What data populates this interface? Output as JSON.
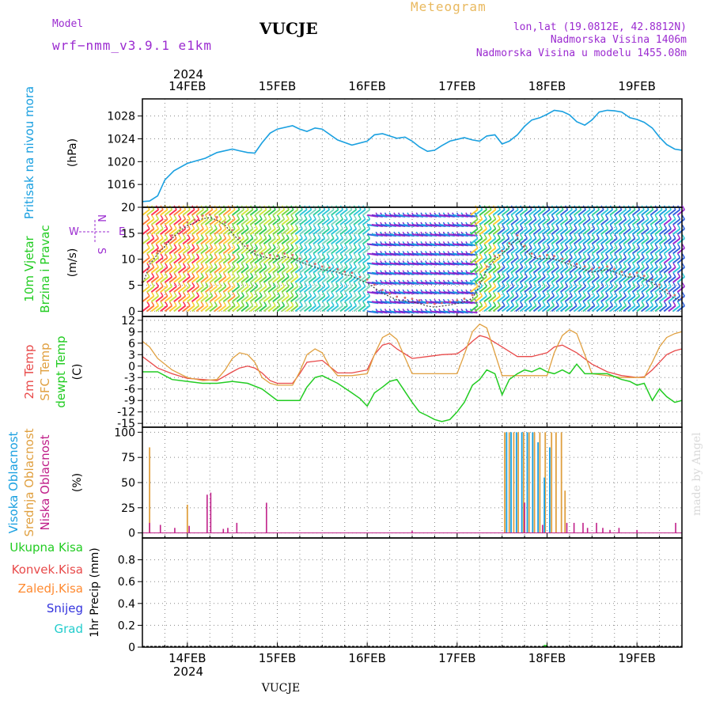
{
  "header": {
    "model_label": "Model",
    "model_name": "wrf−nmm_v3.9.1  e1km",
    "title": "VUCJE",
    "meteogram_label": "Meteogram",
    "coords": "lon,lat (19.0812E, 42.8812N)",
    "elevation": "Nadmorska Visina 1406m",
    "model_elevation": "Nadmorska Visina u modelu 1455.08m",
    "year_top": "2024",
    "year_bottom": "2024",
    "footer_title": "VUCJE",
    "credit": "made by Angel"
  },
  "colors": {
    "pressure": "#1aa0e0",
    "speed_line": "#444444",
    "gust_dots": "#d86b6b",
    "temp2m": "#e84a4a",
    "sfc_temp": "#e0a040",
    "dewpt": "#22cc22",
    "cloud_high": "#1aa0e0",
    "cloud_mid": "#e0a040",
    "cloud_low": "#c0208a",
    "precip_total": "#22cc22",
    "precip_conv": "#e84a4a",
    "precip_frozen": "#ff8a30",
    "precip_snow": "#3333dd",
    "precip_hail": "#22cccc",
    "wind_legend": "#9b2bd0"
  },
  "days": [
    "14FEB",
    "15FEB",
    "16FEB",
    "17FEB",
    "18FEB",
    "19FEB"
  ],
  "panels": {
    "pressure": {
      "side": [
        "Pritisak na nivou mora"
      ],
      "unit": "(hPa)"
    },
    "wind": {
      "side": [
        "10m Vjetar",
        "Brzina i Pravac"
      ],
      "unit": "(m/s)",
      "legend": {
        "n": "N",
        "s": "S",
        "e": "E",
        "w": "W"
      }
    },
    "temp": {
      "side": [
        "2m Temp",
        "SFC Temp",
        "dewpt Temp"
      ],
      "unit": "(C)"
    },
    "cloud": {
      "side": [
        "Visoka Oblacnost",
        "Srednja Oblacnost",
        "Niska Oblacnost"
      ],
      "unit": "(%)"
    },
    "precip": {
      "side": [
        "Ukupna Kisa",
        "Konvek.Kisa",
        "Zaledj.Kisa",
        "Snijeg",
        "Grad"
      ],
      "unit": "1hr Precip (mm)"
    }
  },
  "chart_data": [
    {
      "type": "line",
      "title": "",
      "ylabel": "(hPa)",
      "x_unit": "days from 13FEB 12UTC",
      "xlim": [
        0,
        6
      ],
      "ylim": [
        1012,
        1031
      ],
      "yticks": [
        1016,
        1020,
        1024,
        1028
      ],
      "series": [
        {
          "name": "Pritisak na nivou mora",
          "x": [
            0,
            0.08,
            0.17,
            0.25,
            0.35,
            0.5,
            0.7,
            0.83,
            1.0,
            1.08,
            1.17,
            1.25,
            1.33,
            1.42,
            1.5,
            1.67,
            1.75,
            1.83,
            1.92,
            2.0,
            2.17,
            2.33,
            2.5,
            2.58,
            2.67,
            2.75,
            2.83,
            2.92,
            3.0,
            3.08,
            3.17,
            3.25,
            3.33,
            3.42,
            3.5,
            3.58,
            3.67,
            3.75,
            3.83,
            3.92,
            4.0,
            4.08,
            4.17,
            4.25,
            4.33,
            4.42,
            4.5,
            4.58,
            4.67,
            4.75,
            4.83,
            4.92,
            5.0,
            5.08,
            5.17,
            5.25,
            5.33,
            5.42,
            5.5,
            5.58,
            5.67,
            5.75,
            5.83,
            5.92,
            6.0
          ],
          "values": [
            1013.0,
            1013.1,
            1014.0,
            1016.8,
            1018.4,
            1019.7,
            1020.6,
            1021.6,
            1022.2,
            1021.9,
            1021.6,
            1021.5,
            1023.3,
            1025.0,
            1025.7,
            1026.3,
            1025.7,
            1025.3,
            1025.9,
            1025.7,
            1023.8,
            1022.9,
            1023.6,
            1024.7,
            1024.9,
            1024.5,
            1024.1,
            1024.3,
            1023.6,
            1022.6,
            1021.8,
            1022.0,
            1022.8,
            1023.6,
            1023.9,
            1024.2,
            1023.8,
            1023.6,
            1024.5,
            1024.7,
            1023.1,
            1023.6,
            1024.7,
            1026.2,
            1027.3,
            1027.7,
            1028.3,
            1029.0,
            1028.8,
            1028.2,
            1027.0,
            1026.4,
            1027.3,
            1028.7,
            1029.0,
            1028.9,
            1028.7,
            1027.7,
            1027.4,
            1026.9,
            1025.9,
            1024.3,
            1023.0,
            1022.2,
            1022.0
          ]
        }
      ]
    },
    {
      "type": "line",
      "title": "",
      "ylabel": "(m/s)",
      "xlim": [
        0,
        6
      ],
      "ylim": [
        -1,
        20
      ],
      "yticks": [
        0,
        5,
        10,
        15,
        20
      ],
      "series": [
        {
          "name": "10m Vjetar",
          "x": [
            0,
            0.08,
            0.17,
            0.25,
            0.33,
            0.42,
            0.5,
            0.58,
            0.67,
            0.75,
            0.83,
            0.92,
            1.0,
            1.08,
            1.17,
            1.25,
            1.33,
            1.42,
            1.5,
            1.58,
            1.67,
            1.75,
            1.83,
            1.92,
            2.0,
            2.08,
            2.17,
            2.25,
            2.33,
            2.42,
            2.5,
            2.58,
            2.67,
            2.75,
            2.83,
            2.92,
            3.0,
            3.08,
            3.17,
            3.25,
            3.33,
            3.42,
            3.5,
            3.58,
            3.67,
            3.75,
            3.83,
            3.92,
            4.0,
            4.08,
            4.17,
            4.25,
            4.33,
            4.42,
            4.5,
            4.58,
            4.67,
            4.75,
            4.83,
            4.92,
            5.0,
            5.08,
            5.17,
            5.25,
            5.33,
            5.42,
            5.5,
            5.58,
            5.67,
            5.75,
            5.83,
            5.92,
            6.0
          ],
          "values": [
            5.0,
            9.0,
            11.0,
            12.5,
            14.0,
            15.5,
            16.5,
            17.0,
            17.8,
            18.0,
            17.5,
            16.5,
            15.0,
            13.5,
            12.0,
            11.0,
            10.5,
            10.2,
            10.0,
            10.5,
            10.2,
            9.5,
            9.0,
            8.5,
            8.0,
            7.8,
            7.5,
            7.0,
            6.8,
            6.0,
            5.5,
            4.5,
            3.5,
            2.8,
            2.2,
            2.0,
            1.8,
            1.5,
            1.0,
            0.8,
            1.0,
            1.2,
            1.5,
            1.8,
            2.5,
            5.0,
            8.0,
            10.0,
            11.0,
            12.5,
            14.0,
            12.0,
            10.5,
            10.0,
            10.2,
            10.0,
            9.5,
            9.0,
            8.5,
            8.0,
            7.5,
            7.8,
            8.0,
            7.5,
            7.0,
            6.5,
            6.8,
            6.2,
            5.5,
            4.5,
            3.5,
            2.5,
            2.0
          ]
        }
      ]
    },
    {
      "type": "line",
      "title": "",
      "ylabel": "(C)",
      "xlim": [
        0,
        6
      ],
      "ylim": [
        -16,
        13
      ],
      "yticks": [
        -15,
        -12,
        -9,
        -6,
        -3,
        0,
        3,
        6,
        9,
        12
      ],
      "series": [
        {
          "name": "2m Temp",
          "x": [
            0,
            0.17,
            0.33,
            0.5,
            0.67,
            0.83,
            1.0,
            1.08,
            1.17,
            1.25,
            1.33,
            1.42,
            1.5,
            1.67,
            1.75,
            1.83,
            2.0,
            2.17,
            2.33,
            2.5,
            2.58,
            2.67,
            2.75,
            2.83,
            3.0,
            3.17,
            3.33,
            3.5,
            3.58,
            3.67,
            3.75,
            3.83,
            4.0,
            4.17,
            4.33,
            4.5,
            4.58,
            4.67,
            4.83,
            5.0,
            5.17,
            5.33,
            5.5,
            5.58,
            5.67,
            5.75,
            5.83,
            5.92,
            6.0
          ],
          "values": [
            2.5,
            -0.5,
            -2.0,
            -3.2,
            -3.5,
            -3.8,
            -1.5,
            -0.5,
            0.0,
            -0.5,
            -1.8,
            -3.8,
            -4.5,
            -4.5,
            -2.0,
            1.0,
            1.5,
            -1.8,
            -1.8,
            -1.0,
            3.0,
            5.5,
            6.0,
            4.5,
            2.0,
            2.5,
            3.0,
            3.2,
            4.5,
            6.5,
            8.0,
            7.5,
            5.0,
            2.5,
            2.5,
            3.5,
            5.0,
            5.5,
            3.5,
            0.5,
            -1.5,
            -2.5,
            -3.0,
            -2.8,
            -1.0,
            1.0,
            3.0,
            4.0,
            4.5
          ]
        },
        {
          "name": "SFC Temp",
          "x": [
            0,
            0.08,
            0.17,
            0.33,
            0.5,
            0.67,
            0.83,
            0.92,
            1.0,
            1.08,
            1.17,
            1.25,
            1.33,
            1.42,
            1.5,
            1.67,
            1.75,
            1.83,
            1.92,
            2.0,
            2.08,
            2.17,
            2.33,
            2.5,
            2.58,
            2.67,
            2.75,
            2.83,
            3.0,
            3.17,
            3.33,
            3.5,
            3.58,
            3.67,
            3.75,
            3.83,
            4.0,
            4.17,
            4.33,
            4.5,
            4.58,
            4.67,
            4.75,
            4.83,
            5.0,
            5.17,
            5.33,
            5.5,
            5.58,
            5.67,
            5.75,
            5.83,
            5.92,
            6.0
          ],
          "values": [
            6.5,
            5.0,
            2.0,
            -1.0,
            -3.0,
            -3.8,
            -3.5,
            -1.0,
            2.0,
            3.5,
            3.0,
            1.0,
            -3.0,
            -4.5,
            -5.0,
            -5.0,
            -1.5,
            3.0,
            4.5,
            3.5,
            0.0,
            -2.5,
            -2.5,
            -2.0,
            3.0,
            7.5,
            8.5,
            7.0,
            -2.0,
            -2.0,
            -2.0,
            -2.0,
            3.0,
            9.0,
            11.0,
            10.0,
            -2.5,
            -2.5,
            -2.5,
            -2.5,
            3.5,
            8.0,
            9.5,
            8.5,
            -2.0,
            -2.5,
            -3.0,
            -3.0,
            -3.0,
            1.0,
            5.0,
            7.5,
            8.5,
            9.0
          ]
        },
        {
          "name": "dewpt Temp",
          "x": [
            0,
            0.17,
            0.33,
            0.5,
            0.67,
            0.83,
            1.0,
            1.17,
            1.33,
            1.5,
            1.67,
            1.75,
            1.83,
            1.92,
            2.0,
            2.17,
            2.33,
            2.42,
            2.5,
            2.58,
            2.67,
            2.75,
            2.83,
            3.0,
            3.08,
            3.17,
            3.25,
            3.33,
            3.42,
            3.5,
            3.58,
            3.67,
            3.75,
            3.83,
            3.92,
            4.0,
            4.08,
            4.17,
            4.25,
            4.33,
            4.42,
            4.5,
            4.58,
            4.67,
            4.75,
            4.83,
            4.92,
            5.0,
            5.17,
            5.33,
            5.42,
            5.5,
            5.58,
            5.67,
            5.75,
            5.83,
            5.92,
            6.0
          ],
          "values": [
            -1.5,
            -1.5,
            -3.5,
            -4.0,
            -4.5,
            -4.5,
            -4.0,
            -4.5,
            -6.0,
            -9.0,
            -9.0,
            -9.0,
            -5.5,
            -3.0,
            -2.5,
            -4.5,
            -7.0,
            -8.5,
            -10.5,
            -7.0,
            -5.5,
            -4.0,
            -3.5,
            -9.5,
            -12.0,
            -13.0,
            -14.0,
            -14.5,
            -14.0,
            -12.0,
            -9.5,
            -5.0,
            -3.5,
            -1.0,
            -2.0,
            -7.5,
            -3.5,
            -2.0,
            -1.0,
            -1.5,
            -0.5,
            -1.5,
            -2.0,
            -1.0,
            -2.0,
            0.5,
            -2.0,
            -2.0,
            -2.0,
            -3.5,
            -4.0,
            -5.0,
            -4.5,
            -9.0,
            -6.0,
            -8.0,
            -9.5,
            -9.0
          ]
        }
      ]
    },
    {
      "type": "bar",
      "title": "",
      "ylabel": "(%)",
      "xlim": [
        0,
        6
      ],
      "ylim": [
        -5,
        105
      ],
      "yticks": [
        0,
        25,
        50,
        75,
        100
      ],
      "series": [
        {
          "name": "Visoka Oblacnost",
          "x": [
            4.05,
            4.1,
            4.16,
            4.22,
            4.28,
            4.34,
            4.4,
            4.47,
            4.53
          ],
          "values": [
            100,
            100,
            100,
            100,
            100,
            100,
            90,
            55,
            85
          ]
        },
        {
          "name": "Srednja Oblacnost",
          "x": [
            0.08,
            0.5,
            4.03,
            4.08,
            4.13,
            4.18,
            4.24,
            4.3,
            4.36,
            4.42,
            4.48,
            4.55,
            4.6,
            4.66,
            4.7
          ],
          "values": [
            85,
            28,
            100,
            100,
            100,
            100,
            100,
            100,
            100,
            100,
            100,
            100,
            100,
            100,
            42
          ]
        },
        {
          "name": "Niska Oblacnost",
          "x": [
            0.08,
            0.2,
            0.36,
            0.52,
            0.72,
            0.76,
            0.9,
            0.95,
            1.05,
            1.38,
            3.0,
            4.25,
            4.45,
            4.72,
            4.8,
            4.9,
            4.95,
            5.05,
            5.12,
            5.2,
            5.3,
            5.5,
            5.93
          ],
          "values": [
            10,
            8,
            5,
            7,
            38,
            40,
            4,
            5,
            10,
            30,
            2,
            30,
            8,
            10,
            10,
            10,
            5,
            10,
            5,
            3,
            5,
            3,
            10
          ]
        }
      ]
    },
    {
      "type": "bar",
      "title": "",
      "ylabel": "1hr Precip (mm)",
      "xlim": [
        0,
        6
      ],
      "ylim": [
        0,
        1.0
      ],
      "yticks": [
        0,
        0.2,
        0.4,
        0.6,
        0.8
      ],
      "series": [
        {
          "name": "Ukupna Kisa",
          "x": [
            4.48
          ],
          "values": [
            0.02
          ]
        }
      ]
    }
  ]
}
